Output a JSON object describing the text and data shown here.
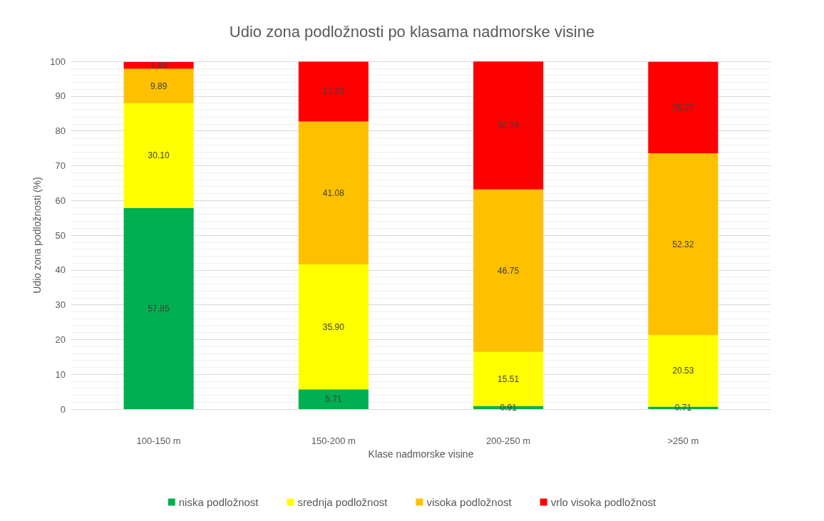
{
  "chart_data": {
    "type": "bar",
    "title": "Udio zona podložnosti po klasama nadmorske visine",
    "xlabel": "Klase nadmorske visine",
    "ylabel": "Udio zona podložnosti (%)",
    "categories": [
      "100-150 m",
      "150-200 m",
      "200-250 m",
      ">250 m"
    ],
    "series": [
      {
        "name": "niska podložnost",
        "color": "#00b050",
        "values": [
          57.85,
          5.71,
          0.91,
          0.71
        ]
      },
      {
        "name": "srednja podložnost",
        "color": "#ffff00",
        "values": [
          30.1,
          35.9,
          15.51,
          20.53
        ]
      },
      {
        "name": "visoka podložnost",
        "color": "#ffc000",
        "values": [
          9.89,
          41.08,
          46.75,
          52.32
        ]
      },
      {
        "name": "vrlo visoka podložnost",
        "color": "#ff0000",
        "values": [
          1.95,
          17.23,
          36.78,
          26.27
        ]
      }
    ],
    "value_labels": [
      [
        "57.85",
        "5.71",
        "0.91",
        "0.71"
      ],
      [
        "30.10",
        "35.90",
        "15.51",
        "20.53"
      ],
      [
        "9.89",
        "41.08",
        "46.75",
        "52.32"
      ],
      [
        "1.95",
        "17.23",
        "36.78",
        "26.27"
      ]
    ],
    "stacked": true,
    "ylim": [
      0,
      100
    ],
    "yticks": [
      0,
      10,
      20,
      30,
      40,
      50,
      60,
      70,
      80,
      90,
      100
    ],
    "grid": "y",
    "legend": "bottom"
  }
}
